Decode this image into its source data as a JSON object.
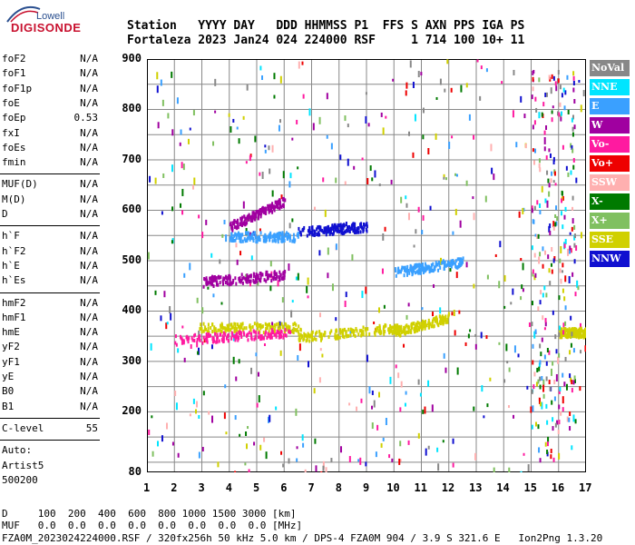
{
  "logo": {
    "brand": "Lowell",
    "product": "DIGISONDE"
  },
  "header": {
    "labels_line": "Station   YYYY DAY   DDD HHMMSS P1  FFS S AXN PPS IGA PS",
    "values_line": "Fortaleza 2023 Jan24 024 224000 RSF     1 714 100 10+ 11"
  },
  "params": {
    "group1": [
      [
        "foF2",
        "N/A"
      ],
      [
        "foF1",
        "N/A"
      ],
      [
        "foF1p",
        "N/A"
      ],
      [
        "foE",
        "N/A"
      ],
      [
        "foEp",
        "0.53"
      ],
      [
        "fxI",
        "N/A"
      ],
      [
        "foEs",
        "N/A"
      ],
      [
        "fmin",
        "N/A"
      ]
    ],
    "group2": [
      [
        "MUF(D)",
        "N/A"
      ],
      [
        "M(D)",
        "N/A"
      ],
      [
        "D",
        "N/A"
      ]
    ],
    "group3": [
      [
        "h`F",
        "N/A"
      ],
      [
        "h`F2",
        "N/A"
      ],
      [
        "h`E",
        "N/A"
      ],
      [
        "h`Es",
        "N/A"
      ]
    ],
    "group4": [
      [
        "hmF2",
        "N/A"
      ],
      [
        "hmF1",
        "N/A"
      ],
      [
        "hmE",
        "N/A"
      ],
      [
        "yF2",
        "N/A"
      ],
      [
        "yF1",
        "N/A"
      ],
      [
        "yE",
        "N/A"
      ],
      [
        "B0",
        "N/A"
      ],
      [
        "B1",
        "N/A"
      ]
    ],
    "clevel": [
      "C-level",
      "55"
    ],
    "auto": [
      "Auto:",
      "Artist5",
      "500200"
    ]
  },
  "legend": [
    {
      "label": "NoVal",
      "color": "#888888"
    },
    {
      "label": "NNE",
      "color": "#00e5ff"
    },
    {
      "label": "E",
      "color": "#3aa0ff"
    },
    {
      "label": "W",
      "color": "#a000a0"
    },
    {
      "label": "Vo-",
      "color": "#ff1aa0"
    },
    {
      "label": "Vo+",
      "color": "#ee0000"
    },
    {
      "label": "SSW",
      "color": "#ffb0b0"
    },
    {
      "label": "X-",
      "color": "#007a00"
    },
    {
      "label": "X+",
      "color": "#80c060"
    },
    {
      "label": "SSE",
      "color": "#d0d000"
    },
    {
      "label": "NNW",
      "color": "#1010d0"
    }
  ],
  "chart_data": {
    "type": "scatter",
    "title": "",
    "xlabel": "",
    "ylabel": "",
    "xlim": [
      1,
      17
    ],
    "ylim": [
      80,
      900
    ],
    "x_ticks": [
      "1",
      "2",
      "3",
      "4",
      "5",
      "6",
      "7",
      "8",
      "9",
      "10",
      "11",
      "12",
      "13",
      "14",
      "15",
      "16",
      "17"
    ],
    "y_ticks": [
      "80",
      "200",
      "300",
      "400",
      "500",
      "600",
      "700",
      "800",
      "900"
    ],
    "traces": [
      {
        "name": "SSE",
        "x": [
          2.8,
          6.6
        ],
        "y": [
          370,
          370
        ]
      },
      {
        "name": "Vo-",
        "x": [
          2.0,
          6.2
        ],
        "y": [
          345,
          360
        ]
      },
      {
        "name": "W",
        "x": [
          3.0,
          6.0
        ],
        "y": [
          460,
          475
        ]
      },
      {
        "name": "W",
        "x": [
          4.0,
          6.0
        ],
        "y": [
          570,
          620
        ]
      },
      {
        "name": "NNW",
        "x": [
          6.5,
          9.0
        ],
        "y": [
          560,
          570
        ]
      },
      {
        "name": "E",
        "x": [
          4.0,
          6.5
        ],
        "y": [
          550,
          550
        ]
      },
      {
        "name": "SSE",
        "x": [
          6.5,
          10.2
        ],
        "y": [
          350,
          370
        ]
      },
      {
        "name": "SSE",
        "x": [
          10.0,
          12.0
        ],
        "y": [
          360,
          390
        ]
      },
      {
        "name": "E",
        "x": [
          10.0,
          12.5
        ],
        "y": [
          480,
          500
        ]
      },
      {
        "name": "SSE",
        "x": [
          16.0,
          17.0
        ],
        "y": [
          360,
          360
        ]
      }
    ]
  },
  "footer": {
    "d_line": "D     100  200  400  600  800 1000 1500 3000 [km]",
    "muf_line": "MUF   0.0  0.0  0.0  0.0  0.0  0.0  0.0  0.0 [MHz]",
    "file_line": "FZA0M_2023024224000.RSF / 320fx256h 50 kHz 5.0 km / DPS-4 FZA0M 904 / 3.9 S 321.6 E   Ion2Png 1.3.20"
  }
}
